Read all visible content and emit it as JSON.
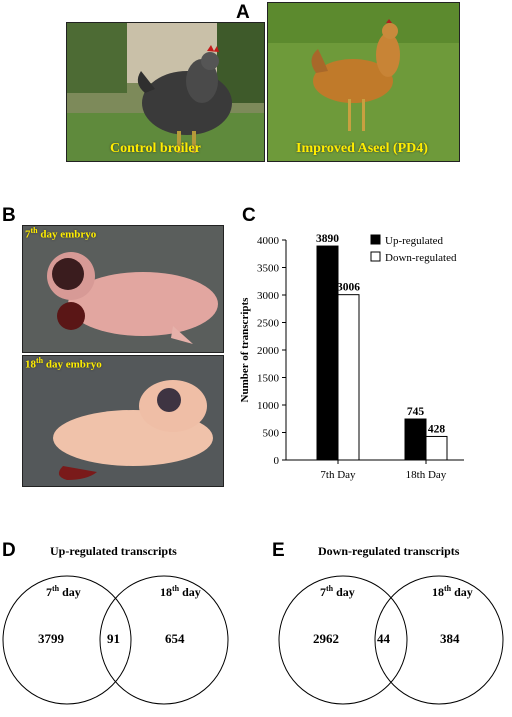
{
  "panels": {
    "a": {
      "label": "A",
      "left_caption": "Control broiler",
      "right_caption": "Improved Aseel (PD4)"
    },
    "b": {
      "label": "B",
      "top_caption_num": "7",
      "top_caption_sup": "th",
      "top_caption_rest": " day  embryo",
      "bottom_caption_num": "18",
      "bottom_caption_sup": "th",
      "bottom_caption_rest": " day  embryo"
    },
    "c": {
      "label": "C"
    },
    "d": {
      "label": "D",
      "title": "Up-regulated  transcripts",
      "left_day_num": "7",
      "left_day_sup": "th",
      "left_day_rest": " day",
      "right_day_num": "18",
      "right_day_sup": "th",
      "right_day_rest": " day",
      "left_only": "3799",
      "overlap": "91",
      "right_only": "654"
    },
    "e": {
      "label": "E",
      "title": "Down-regulated  transcripts",
      "left_day_num": "7",
      "left_day_sup": "th",
      "left_day_rest": " day",
      "right_day_num": "18",
      "right_day_sup": "th",
      "right_day_rest": " day",
      "left_only": "2962",
      "overlap": "44",
      "right_only": "384"
    }
  },
  "chart_data": {
    "type": "bar",
    "categories": [
      "7th Day",
      "18th Day"
    ],
    "series": [
      {
        "name": "Up-regulated",
        "values": [
          3890,
          745
        ],
        "color": "#000000"
      },
      {
        "name": "Down-regulated",
        "values": [
          3006,
          428
        ],
        "color": "#ffffff"
      }
    ],
    "ylabel": "Number  of transcripts",
    "ylim": [
      0,
      4000
    ],
    "yticks": [
      0,
      500,
      1000,
      1500,
      2000,
      2500,
      3000,
      3500,
      4000
    ],
    "data_labels": [
      "3890",
      "3006",
      "745",
      "428"
    ],
    "legend_position": "top-right",
    "grid": false
  }
}
